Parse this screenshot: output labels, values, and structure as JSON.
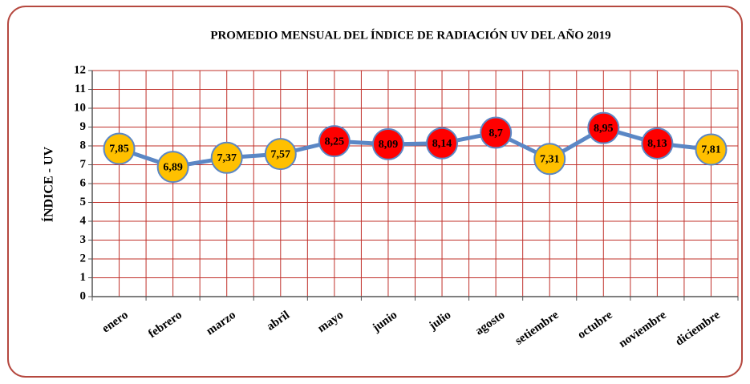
{
  "chart_data": {
    "type": "line",
    "title": "PROMEDIO MENSUAL  DEL ÍNDICE DE RADIACIÓN UV  DEL AÑO 2019",
    "y_label": "ÍNDICE - UV",
    "categories": [
      "enero",
      "febrero",
      "marzo",
      "abril",
      "mayo",
      "junio",
      "julio",
      "agosto",
      "setiembre",
      "octubre",
      "noviembre",
      "diciembre"
    ],
    "values": [
      7.85,
      6.89,
      7.37,
      7.57,
      8.25,
      8.09,
      8.14,
      8.7,
      7.31,
      8.95,
      8.13,
      7.81
    ],
    "value_labels": [
      "7,85",
      "6,89",
      "7,37",
      "7,57",
      "8,25",
      "8,09",
      "8,14",
      "8,7",
      "7,31",
      "8,95",
      "8,13",
      "7,81"
    ],
    "color": "#5b87c5",
    "marker_colors": [
      "#ffc000",
      "#ffc000",
      "#ffc000",
      "#ffc000",
      "#ff0000",
      "#ff0000",
      "#ff0000",
      "#ff0000",
      "#ffc000",
      "#ff0000",
      "#ff0000",
      "#ffc000"
    ],
    "ylim": [
      0,
      12
    ],
    "yticks": [
      0,
      1,
      2,
      3,
      4,
      5,
      6,
      7,
      8,
      9,
      10,
      11,
      12
    ],
    "grid": true
  }
}
